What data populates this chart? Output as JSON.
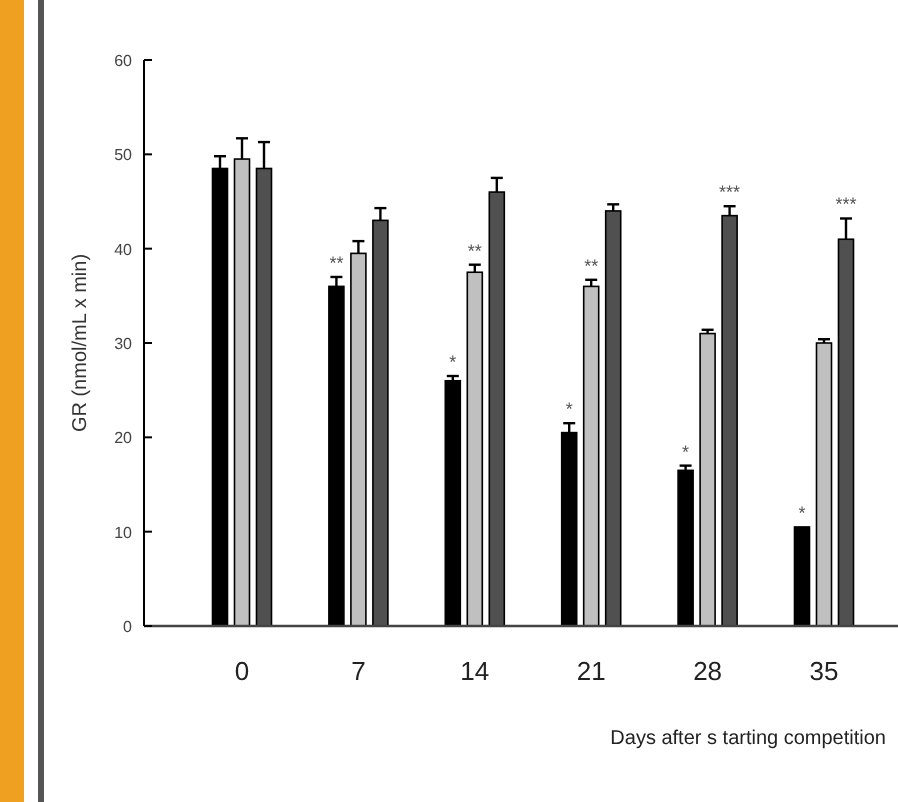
{
  "chart_data": {
    "type": "bar",
    "xlabel": "Days after s tarting competition",
    "ylabel": "GR (nmol/mL x min)",
    "categories": [
      "0",
      "7",
      "14",
      "21",
      "28",
      "35"
    ],
    "ylim": [
      0,
      60
    ],
    "yticks": [
      0,
      10,
      20,
      30,
      40,
      50,
      60
    ],
    "grid": false,
    "series": [
      {
        "color": "#000000",
        "values": [
          48.5,
          36,
          26,
          20.5,
          16.5,
          10.5
        ],
        "errors": [
          [
            48.5,
            49.8
          ],
          [
            36,
            37
          ],
          [
            26,
            26.5
          ],
          [
            20.5,
            21.5
          ],
          [
            16.5,
            17
          ],
          null
        ],
        "value_labels": [
          null,
          "**",
          "*",
          "*",
          "*",
          "*"
        ]
      },
      {
        "color": "#c0c0c0",
        "values": [
          49.5,
          39.5,
          37.5,
          36,
          31,
          30
        ],
        "errors": [
          [
            49.5,
            51.7
          ],
          [
            39.5,
            40.8
          ],
          [
            37.5,
            38.3
          ],
          [
            36,
            36.7
          ],
          [
            31,
            31.4
          ],
          [
            30,
            30.4
          ]
        ],
        "value_labels": [
          null,
          null,
          "**",
          "**",
          null,
          null
        ]
      },
      {
        "color": "#505050",
        "values": [
          48.5,
          43,
          46,
          44,
          43.5,
          41
        ],
        "errors": [
          [
            48.5,
            51.3
          ],
          [
            43,
            44.3
          ],
          [
            46,
            47.5
          ],
          [
            44,
            44.7
          ],
          [
            43.5,
            44.5
          ],
          [
            41,
            43.2
          ]
        ],
        "value_labels": [
          null,
          null,
          null,
          null,
          "***",
          "***"
        ]
      }
    ]
  }
}
